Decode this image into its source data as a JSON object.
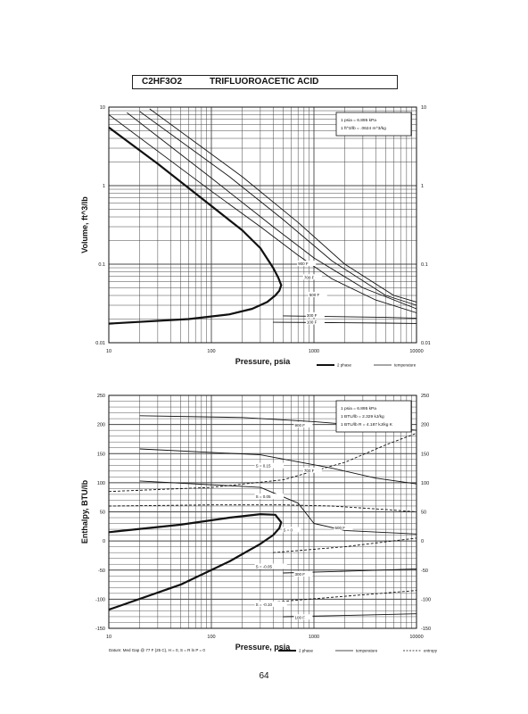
{
  "header": {
    "formula": "C2HF3O2",
    "name": "TRIFLUOROACETIC ACID"
  },
  "page_number": "64",
  "chart_data": [
    {
      "type": "line",
      "title": "",
      "xlabel": "Pressure,  psia",
      "ylabel": "Volume, ft^3/lb",
      "xscale": "log",
      "yscale": "log",
      "xlim": [
        10,
        10000
      ],
      "ylim": [
        0.01,
        10
      ],
      "x_ticks": [
        "10",
        "100",
        "1000",
        "10000"
      ],
      "y_ticks_left": [
        "10",
        "1",
        "0.1",
        "0.01"
      ],
      "y_ticks_right": [
        "10",
        "1",
        "0.1",
        "0.01"
      ],
      "grid": true,
      "legend": {
        "position": "bottom-right",
        "entries": [
          {
            "label": "2 phase",
            "style": "thick"
          },
          {
            "label": "temperature",
            "style": "thin"
          }
        ]
      },
      "conversion_box": [
        "1 psia = 6.895 kPa",
        "1 ft^3/lb = .0624 m^3/kg"
      ],
      "series": [
        {
          "kind": "2-phase",
          "points": [
            [
              10,
              5.5
            ],
            [
              30,
              1.9
            ],
            [
              100,
              0.55
            ],
            [
              200,
              0.27
            ],
            [
              300,
              0.16
            ],
            [
              400,
              0.09
            ],
            [
              450,
              0.067
            ],
            [
              480,
              0.054
            ],
            [
              460,
              0.046
            ],
            [
              420,
              0.04
            ],
            [
              350,
              0.033
            ],
            [
              250,
              0.027
            ],
            [
              150,
              0.023
            ],
            [
              60,
              0.02
            ],
            [
              10,
              0.0175
            ]
          ]
        },
        {
          "kind": "temperature",
          "points": [
            [
              10,
              8
            ],
            [
              100,
              0.85
            ],
            [
              300,
              0.3
            ],
            [
              700,
              0.13
            ],
            [
              1500,
              0.065
            ],
            [
              4000,
              0.035
            ],
            [
              10000,
              0.024
            ]
          ]
        },
        {
          "kind": "temperature",
          "points": [
            [
              15,
              8.5
            ],
            [
              100,
              1.25
            ],
            [
              400,
              0.3
            ],
            [
              1000,
              0.12
            ],
            [
              3000,
              0.05
            ],
            [
              10000,
              0.027
            ]
          ]
        },
        {
          "kind": "temperature",
          "points": [
            [
              20,
              8.8
            ],
            [
              150,
              1.3
            ],
            [
              500,
              0.37
            ],
            [
              1500,
              0.11
            ],
            [
              5000,
              0.04
            ],
            [
              10000,
              0.03
            ]
          ]
        },
        {
          "kind": "temperature",
          "points": [
            [
              25,
              9.5
            ],
            [
              200,
              1.3
            ],
            [
              700,
              0.34
            ],
            [
              2000,
              0.1
            ],
            [
              6000,
              0.04
            ],
            [
              10000,
              0.033
            ]
          ]
        },
        {
          "kind": "temperature",
          "points": [
            [
              500,
              0.022
            ],
            [
              1500,
              0.0215
            ],
            [
              5000,
              0.021
            ],
            [
              10000,
              0.0205
            ]
          ]
        },
        {
          "kind": "temperature",
          "points": [
            [
              400,
              0.0182
            ],
            [
              1500,
              0.018
            ],
            [
              5000,
              0.0178
            ],
            [
              10000,
              0.0176
            ]
          ]
        }
      ],
      "annotations": [
        {
          "text": "900 F",
          "x": 700,
          "y": 0.1
        },
        {
          "text": "700 F",
          "x": 800,
          "y": 0.067
        },
        {
          "text": "500 F",
          "x": 900,
          "y": 0.04
        },
        {
          "text": "300 F",
          "x": 850,
          "y": 0.022
        },
        {
          "text": "100 F",
          "x": 850,
          "y": 0.018
        }
      ]
    },
    {
      "type": "line",
      "title": "",
      "xlabel": "Pressure,  psia",
      "ylabel": "Enthalpy, BTU/lb",
      "xscale": "log",
      "yscale": "linear",
      "xlim": [
        10,
        10000
      ],
      "ylim": [
        -150,
        250
      ],
      "x_ticks": [
        "10",
        "100",
        "1000",
        "10000"
      ],
      "y_ticks_left": [
        "250",
        "200",
        "150",
        "100",
        "50",
        "0",
        "-50",
        "-100",
        "-150"
      ],
      "y_ticks_right": [
        "250",
        "200",
        "150",
        "100",
        "50",
        "0",
        "-50",
        "-100",
        "-150"
      ],
      "grid": true,
      "legend": {
        "position": "bottom-right",
        "entries": [
          {
            "label": "2 phase",
            "style": "thick"
          },
          {
            "label": "temperature",
            "style": "thin"
          },
          {
            "label": "entropy",
            "style": "dashed"
          }
        ]
      },
      "datum_note": "Datum: Med Gap @ 77 F (25 C), H = 0, S = R ln P = 0",
      "conversion_box": [
        "1 psia = 6.895 kPa",
        "1 BTU/lb = 2.329 kJ/kg",
        "1 BTU/lb R = 4.187 kJ/kg K"
      ],
      "series": [
        {
          "kind": "2-phase",
          "points": [
            [
              10,
              15
            ],
            [
              50,
              28
            ],
            [
              150,
              40
            ],
            [
              300,
              46
            ],
            [
              420,
              45
            ],
            [
              480,
              32
            ],
            [
              460,
              22
            ],
            [
              400,
              10
            ],
            [
              300,
              -5
            ],
            [
              150,
              -35
            ],
            [
              50,
              -75
            ],
            [
              10,
              -118
            ]
          ]
        },
        {
          "kind": "temperature",
          "points": [
            [
              20,
              215
            ],
            [
              200,
              212
            ],
            [
              1000,
              205
            ],
            [
              3000,
              198
            ],
            [
              10000,
              190
            ]
          ]
        },
        {
          "kind": "temperature",
          "points": [
            [
              20,
              158
            ],
            [
              300,
              148
            ],
            [
              1500,
              125
            ],
            [
              4000,
              108
            ],
            [
              10000,
              98
            ]
          ]
        },
        {
          "kind": "temperature",
          "points": [
            [
              20,
              103
            ],
            [
              300,
              92
            ],
            [
              700,
              65
            ],
            [
              1000,
              30
            ],
            [
              2000,
              18
            ],
            [
              10000,
              12
            ]
          ]
        },
        {
          "kind": "temperature",
          "points": [
            [
              500,
              -55
            ],
            [
              2000,
              -52
            ],
            [
              10000,
              -48
            ]
          ]
        },
        {
          "kind": "temperature",
          "points": [
            [
              500,
              -130
            ],
            [
              2000,
              -128
            ],
            [
              10000,
              -125
            ]
          ]
        },
        {
          "kind": "entropy",
          "points": [
            [
              10,
              60
            ],
            [
              100,
              62
            ],
            [
              500,
              62
            ],
            [
              1500,
              60
            ],
            [
              5000,
              54
            ],
            [
              10000,
              50
            ]
          ]
        },
        {
          "kind": "entropy",
          "points": [
            [
              10,
              85
            ],
            [
              100,
              92
            ],
            [
              500,
              105
            ],
            [
              2000,
              135
            ],
            [
              5000,
              165
            ],
            [
              10000,
              185
            ]
          ]
        },
        {
          "kind": "entropy",
          "points": [
            [
              400,
              -20
            ],
            [
              2000,
              -10
            ],
            [
              10000,
              5
            ]
          ]
        },
        {
          "kind": "entropy",
          "points": [
            [
              400,
              -105
            ],
            [
              2000,
              -95
            ],
            [
              10000,
              -85
            ]
          ]
        }
      ],
      "annotations": [
        {
          "text": "900 F",
          "x": 650,
          "y": 198
        },
        {
          "text": "S = 0.15",
          "x": 270,
          "y": 128
        },
        {
          "text": "700 F",
          "x": 800,
          "y": 120
        },
        {
          "text": "S = 0.05",
          "x": 270,
          "y": 75
        },
        {
          "text": "S = 0",
          "x": 500,
          "y": 18
        },
        {
          "text": "500 F",
          "x": 1600,
          "y": 22
        },
        {
          "text": "S = -0.05",
          "x": 270,
          "y": -45
        },
        {
          "text": "300 F",
          "x": 650,
          "y": -58
        },
        {
          "text": "S = -0.10",
          "x": 270,
          "y": -110
        },
        {
          "text": "100 F",
          "x": 650,
          "y": -132
        }
      ]
    }
  ]
}
